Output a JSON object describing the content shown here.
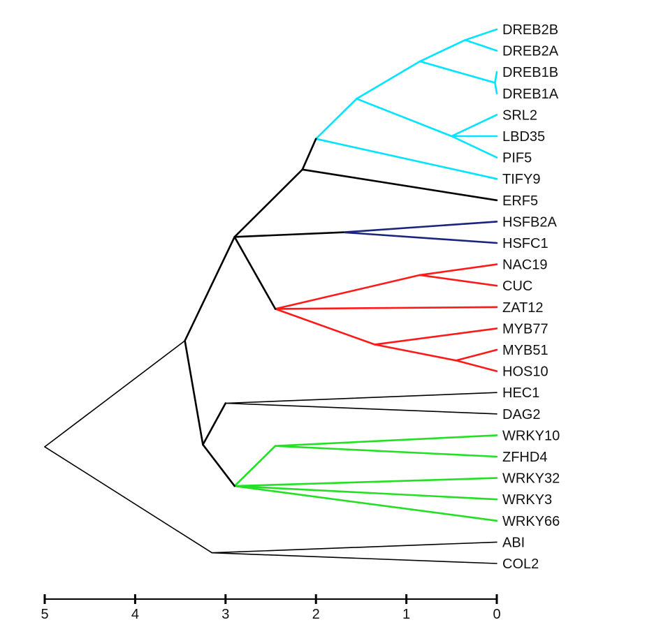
{
  "dendrogram": {
    "axis": {
      "ticks": [
        "5",
        "4",
        "3",
        "2",
        "1",
        "0"
      ],
      "tick_values": [
        5,
        4,
        3,
        2,
        1,
        0
      ],
      "min": 0,
      "max": 5
    },
    "leaves": [
      "DREB2B",
      "DREB2A",
      "DREB1B",
      "DREB1A",
      "SRL2",
      "LBD35",
      "PIF5",
      "TIFY9",
      "ERF5",
      "HSFB2A",
      "HSFC1",
      "NAC19",
      "CUC",
      "ZAT12",
      "MYB77",
      "MYB51",
      "HOS10",
      "HEC1",
      "DAG2",
      "WRKY10",
      "ZFHD4",
      "WRKY32",
      "WRKY3",
      "WRKY66",
      "ABI",
      "COL2"
    ],
    "clusters": [
      {
        "color": "#00e5ff",
        "leaves": [
          "DREB2B",
          "DREB2A",
          "DREB1B",
          "DREB1A",
          "SRL2",
          "LBD35",
          "PIF5"
        ]
      },
      {
        "color": "#1a237e",
        "leaves": [
          "HSFB2A",
          "HSFC1"
        ]
      },
      {
        "color": "#ff1a1a",
        "leaves": [
          "NAC19",
          "CUC",
          "ZAT12",
          "MYB77",
          "MYB51",
          "HOS10"
        ]
      },
      {
        "color": "#22e022",
        "leaves": [
          "WRKY10",
          "ZFHD4",
          "WRKY32",
          "WRKY3",
          "WRKY66"
        ]
      }
    ],
    "colors": {
      "default": "#000000",
      "cyan": "#00e5ff",
      "navy": "#1a237e",
      "red": "#ff1a1a",
      "green": "#22e022"
    },
    "nodes": [
      {
        "id": "n_dreb2",
        "height": 0.35,
        "children": [
          "DREB2B",
          "DREB2A"
        ],
        "color": "cyan"
      },
      {
        "id": "n_dreb1",
        "height": 0.02,
        "children": [
          "DREB1B",
          "DREB1A"
        ],
        "color": "cyan"
      },
      {
        "id": "n_dreb",
        "height": 0.85,
        "children": [
          "n_dreb2",
          "n_dreb1"
        ],
        "color": "cyan"
      },
      {
        "id": "n_srl",
        "height": 0.5,
        "children": [
          "SRL2",
          "LBD35",
          "PIF5"
        ],
        "color": "cyan"
      },
      {
        "id": "n_cyan",
        "height": 1.55,
        "children": [
          "n_dreb",
          "n_srl"
        ],
        "color": "cyan"
      },
      {
        "id": "n_tify",
        "height": 2.0,
        "children": [
          "n_cyan",
          "TIFY9"
        ],
        "color": "cyan"
      },
      {
        "id": "n_erf",
        "height": 2.15,
        "children": [
          "n_tify",
          "ERF5"
        ],
        "color": "default"
      },
      {
        "id": "n_hsf",
        "height": 1.7,
        "children": [
          "HSFB2A",
          "HSFC1"
        ],
        "color": "navy"
      },
      {
        "id": "n_nac",
        "height": 0.85,
        "children": [
          "NAC19",
          "CUC"
        ],
        "color": "red"
      },
      {
        "id": "n_myb51",
        "height": 0.45,
        "children": [
          "MYB51",
          "HOS10"
        ],
        "color": "red"
      },
      {
        "id": "n_myb",
        "height": 1.35,
        "children": [
          "MYB77",
          "n_myb51"
        ],
        "color": "red"
      },
      {
        "id": "n_red",
        "height": 2.45,
        "children": [
          "n_nac",
          "ZAT12",
          "n_myb"
        ],
        "color": "red"
      },
      {
        "id": "n_mid",
        "height": 2.9,
        "children": [
          "n_erf",
          "n_hsf",
          "n_red"
        ],
        "color": "default"
      },
      {
        "id": "n_hec",
        "height": 3.0,
        "children": [
          "HEC1",
          "DAG2"
        ],
        "color": "default"
      },
      {
        "id": "n_wrky10",
        "height": 2.45,
        "children": [
          "WRKY10",
          "ZFHD4"
        ],
        "color": "green"
      },
      {
        "id": "n_green",
        "height": 2.9,
        "children": [
          "n_wrky10",
          "WRKY32",
          "WRKY3",
          "WRKY66"
        ],
        "color": "green"
      },
      {
        "id": "n_hecgreen",
        "height": 3.25,
        "children": [
          "n_hec",
          "n_green"
        ],
        "color": "default"
      },
      {
        "id": "n_big",
        "height": 3.45,
        "children": [
          "n_mid",
          "n_hecgreen"
        ],
        "color": "default"
      },
      {
        "id": "n_abi",
        "height": 3.15,
        "children": [
          "ABI",
          "COL2"
        ],
        "color": "default"
      },
      {
        "id": "n_root",
        "height": 5.0,
        "children": [
          "n_big",
          "n_abi"
        ],
        "color": "default"
      }
    ]
  }
}
